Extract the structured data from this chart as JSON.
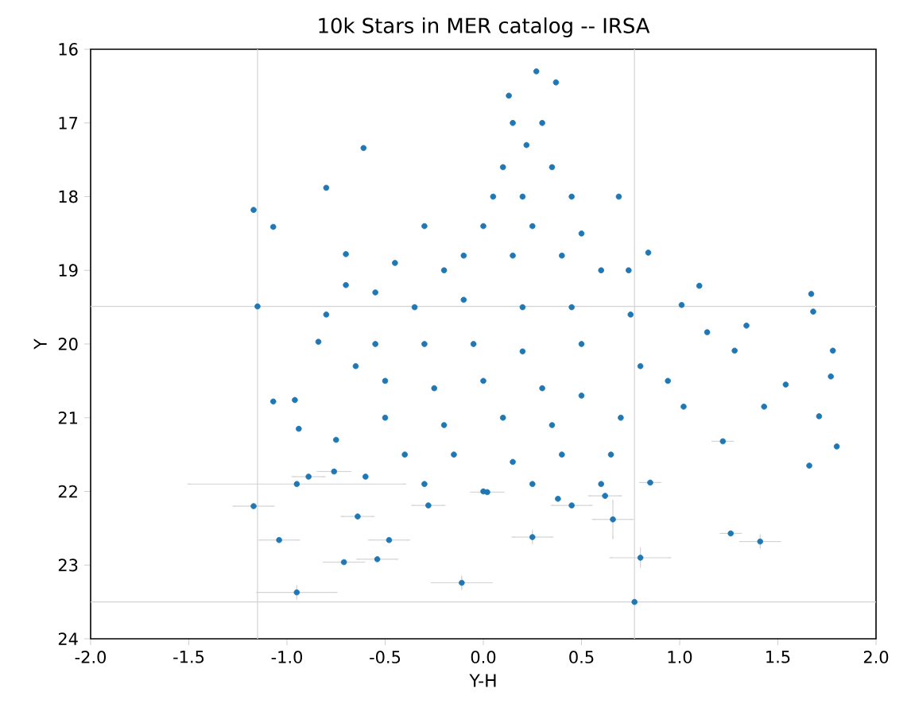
{
  "chart_data": {
    "type": "scatter",
    "title": "10k Stars in MER catalog -- IRSA",
    "xlabel": "Y-H",
    "ylabel": "Y",
    "color": "#1f77b4",
    "xlim": [
      -2,
      2
    ],
    "xticks": [
      {
        "value": -2,
        "label": "-2.0"
      },
      {
        "value": -1.5,
        "label": "-1.5"
      },
      {
        "value": -1,
        "label": "-1.0"
      },
      {
        "value": -0.5,
        "label": "-0.5"
      },
      {
        "value": 0,
        "label": "0.0"
      },
      {
        "value": 0.5,
        "label": "0.5"
      },
      {
        "value": 1,
        "label": "1.0"
      },
      {
        "value": 1.5,
        "label": "1.5"
      },
      {
        "value": 2,
        "label": "2.0"
      }
    ],
    "ylim": [
      24,
      16
    ],
    "yticks": [
      16,
      17,
      18,
      19,
      20,
      21,
      22,
      23,
      24
    ],
    "x": [
      -1.15,
      0.77,
      -0.95,
      -0.95,
      -0.11,
      0.8,
      1.41,
      0.66,
      -1.17,
      -1.07,
      -0.8,
      -0.61,
      -1.17,
      1.26,
      1.22,
      1.43,
      1.71,
      1.8,
      1.66,
      1.77,
      1.54,
      1.78,
      1.67,
      1.68,
      1.14,
      1.01,
      0.84,
      0.74,
      0.69,
      -0.7,
      -0.84,
      -0.96,
      -0.94,
      -1.07,
      -0.89,
      -0.76,
      -1.04,
      -0.71,
      -0.54,
      -0.64,
      -0.48,
      -0.28,
      0.02,
      0.45,
      0.62,
      0.85,
      1.02,
      0.94,
      1.28,
      1.34,
      1.1,
      0.27,
      0.37,
      0.13,
      0.25,
      0.15,
      0.3,
      0.22,
      0.1,
      0.35,
      0.05,
      0.2,
      0.45,
      0.0,
      0.25,
      0.5,
      -0.1,
      0.15,
      0.4,
      0.6,
      -0.3,
      -0.45,
      -0.2,
      -0.55,
      -0.35,
      -0.1,
      0.2,
      0.45,
      -0.55,
      -0.3,
      -0.05,
      0.2,
      0.5,
      -0.5,
      -0.25,
      0.0,
      0.3,
      0.5,
      -0.5,
      -0.2,
      0.1,
      0.35,
      -0.4,
      -0.15,
      0.15,
      0.4,
      -0.3,
      0.0,
      0.25,
      0.38,
      -0.7,
      -0.8,
      -0.65,
      -0.75,
      0.75,
      0.8,
      0.7,
      0.65,
      -0.6,
      0.6
    ],
    "values": [
      19.49,
      23.5,
      21.9,
      23.37,
      23.24,
      22.9,
      22.68,
      22.38,
      22.2,
      18.41,
      17.88,
      17.34,
      18.18,
      22.57,
      21.32,
      20.85,
      20.98,
      21.39,
      21.65,
      20.44,
      20.55,
      20.09,
      19.32,
      19.56,
      19.84,
      19.47,
      18.76,
      19.0,
      18.0,
      18.78,
      19.97,
      20.76,
      21.15,
      20.78,
      21.8,
      21.73,
      22.66,
      22.96,
      22.92,
      22.34,
      22.66,
      22.19,
      22.01,
      22.19,
      22.06,
      21.88,
      20.85,
      20.5,
      20.09,
      19.75,
      19.21,
      16.3,
      16.45,
      16.63,
      22.62,
      17.0,
      17.0,
      17.3,
      17.6,
      17.6,
      18.0,
      18.0,
      18.0,
      18.4,
      18.4,
      18.5,
      18.8,
      18.8,
      18.8,
      19.0,
      18.4,
      18.9,
      19.0,
      19.3,
      19.5,
      19.4,
      19.5,
      19.5,
      20.0,
      20.0,
      20.0,
      20.1,
      20.0,
      20.5,
      20.6,
      20.5,
      20.6,
      20.7,
      21.0,
      21.1,
      21.0,
      21.1,
      21.5,
      21.5,
      21.6,
      21.5,
      21.9,
      22.0,
      21.9,
      22.1,
      19.2,
      19.6,
      20.3,
      21.3,
      19.6,
      20.3,
      21.0,
      21.5,
      21.8,
      21.9
    ],
    "xerrors": [
      [
        -2,
        2
      ],
      [
        -2,
        2
      ],
      [
        -1.5,
        -0.4
      ],
      0.2,
      0.15,
      0.15,
      0.1,
      0.1,
      0.1,
      null,
      null,
      null,
      null,
      0.05,
      0.05,
      null,
      null,
      null,
      null,
      null,
      null,
      null,
      null,
      null,
      null,
      null,
      null,
      null,
      null,
      null,
      null,
      null,
      null,
      null,
      0.08,
      0.08,
      0.1,
      0.1,
      0.1,
      0.08,
      0.1,
      0.08,
      0.08,
      0.1,
      0.08,
      0.05,
      null,
      null,
      null,
      null,
      null,
      null,
      null,
      null,
      0.1,
      null,
      null,
      null,
      null,
      null,
      null,
      null,
      null,
      null,
      null,
      null,
      null,
      null,
      null,
      null,
      null,
      null,
      null,
      null,
      null,
      null,
      null,
      null,
      null,
      null,
      null,
      null,
      null,
      null,
      null,
      null,
      null,
      null,
      null,
      null,
      null,
      null,
      null,
      null,
      null,
      null,
      null,
      null,
      null,
      null,
      null,
      null,
      null,
      null,
      null,
      null,
      null,
      null,
      null,
      null
    ],
    "errors": [
      [
        16,
        24
      ],
      [
        16,
        24
      ],
      null,
      0.08,
      0.08,
      0.12,
      0.08,
      0.25,
      null,
      null,
      null,
      null,
      null,
      null,
      null,
      null,
      null,
      null,
      null,
      null,
      null,
      null,
      null,
      null,
      null,
      null,
      null,
      null,
      null,
      null,
      null,
      null,
      null,
      null,
      null,
      null,
      null,
      null,
      null,
      null,
      null,
      null,
      null,
      null,
      null,
      null,
      null,
      null,
      null,
      null,
      null,
      null,
      null,
      null,
      0.08,
      null,
      null,
      null,
      null,
      null,
      null,
      null,
      null,
      null,
      null,
      null,
      null,
      null,
      null,
      null,
      null,
      null,
      null,
      null,
      null,
      null,
      null,
      null,
      null,
      null,
      null,
      null,
      null,
      null,
      null,
      null,
      null,
      null,
      null,
      null,
      null,
      null,
      null,
      null,
      null,
      null,
      null,
      null,
      null,
      null,
      null,
      null,
      null,
      null,
      null,
      null,
      null,
      null,
      null,
      null
    ]
  }
}
